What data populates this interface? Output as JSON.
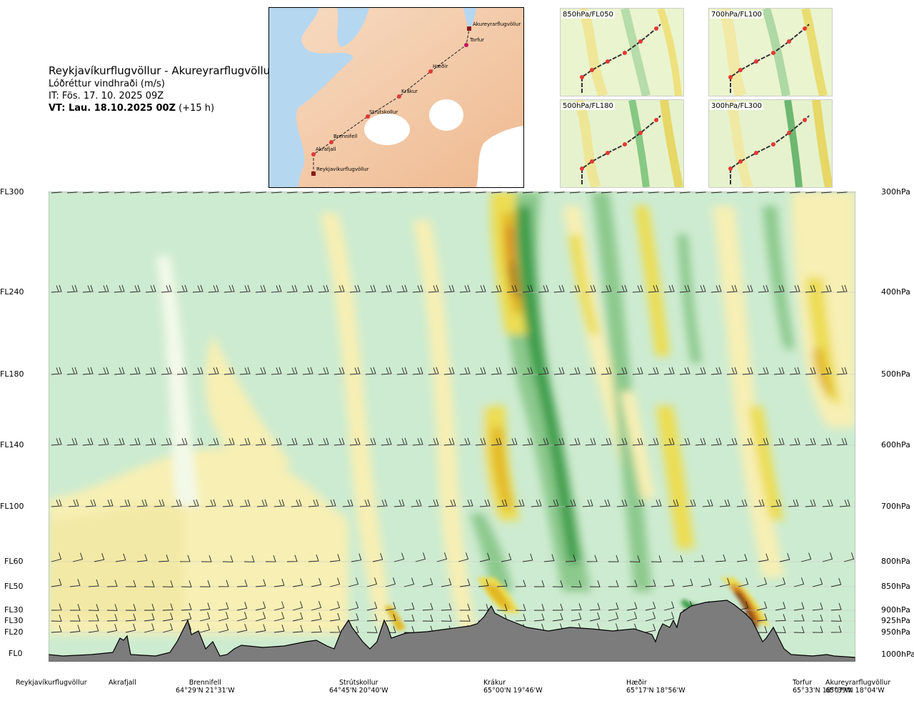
{
  "title": "Reykjavíkurflugvöllur - Akureyrarflugvöllur",
  "subtitle": "Lóðréttur vindhraði (m/s)",
  "issue_time": "IT: Fös. 17. 10. 2025 09Z",
  "valid_time": "VT: Lau. 18.10.2025 00Z",
  "valid_offset": "(+15 h)",
  "route_map": {
    "waypoints": [
      "Akureyrarflugvöllur",
      "Torfur",
      "Hæðir",
      "Krákur",
      "Strútskollur",
      "Brennifell",
      "Akrafjall",
      "Reykjavíkurflugvöllur"
    ]
  },
  "mini_maps": [
    {
      "label": "850hPa/FL050"
    },
    {
      "label": "700hPa/FL100"
    },
    {
      "label": "500hPa/FL180"
    },
    {
      "label": "300hPa/FL300"
    }
  ],
  "levels_fl": [
    "FL300",
    "FL240",
    "FL180",
    "FL140",
    "FL100",
    "FL60",
    "FL50",
    "FL30",
    "FL30",
    "FL20",
    "FL0"
  ],
  "levels_hpa": [
    "300hPa",
    "400hPa",
    "500hPa",
    "600hPa",
    "700hPa",
    "800hPa",
    "850hPa",
    "900hPa",
    "925hPa",
    "950hPa",
    "1000hPa"
  ],
  "locations": [
    {
      "name": "Reykjavíkurflugvöllur",
      "coord": ""
    },
    {
      "name": "Akrafjall",
      "coord": ""
    },
    {
      "name": "Brennifell",
      "coord": "64°29'N 21°31'W"
    },
    {
      "name": "Strútskollur",
      "coord": "64°45'N 20°40'W"
    },
    {
      "name": "Krákur",
      "coord": "65°00'N 19°46'W"
    },
    {
      "name": "Hæðir",
      "coord": "65°17'N 18°56'W"
    },
    {
      "name": "Torfur",
      "coord": "65°33'N 18°07'W"
    },
    {
      "name": "Akureyrarflugvöllur",
      "coord": "65°39'N 18°04'W"
    }
  ],
  "colors": {
    "dark_green": "#3e9e4b",
    "mid_green": "#8cc98d",
    "light_green": "#cdebd0",
    "pale": "#f3f9e8",
    "light_yellow": "#f7efb4",
    "yellow": "#ecdd52",
    "gold": "#e2b823",
    "orange": "#d98b1e",
    "brown": "#8a4a12",
    "terrain": "#7c7c7c"
  }
}
